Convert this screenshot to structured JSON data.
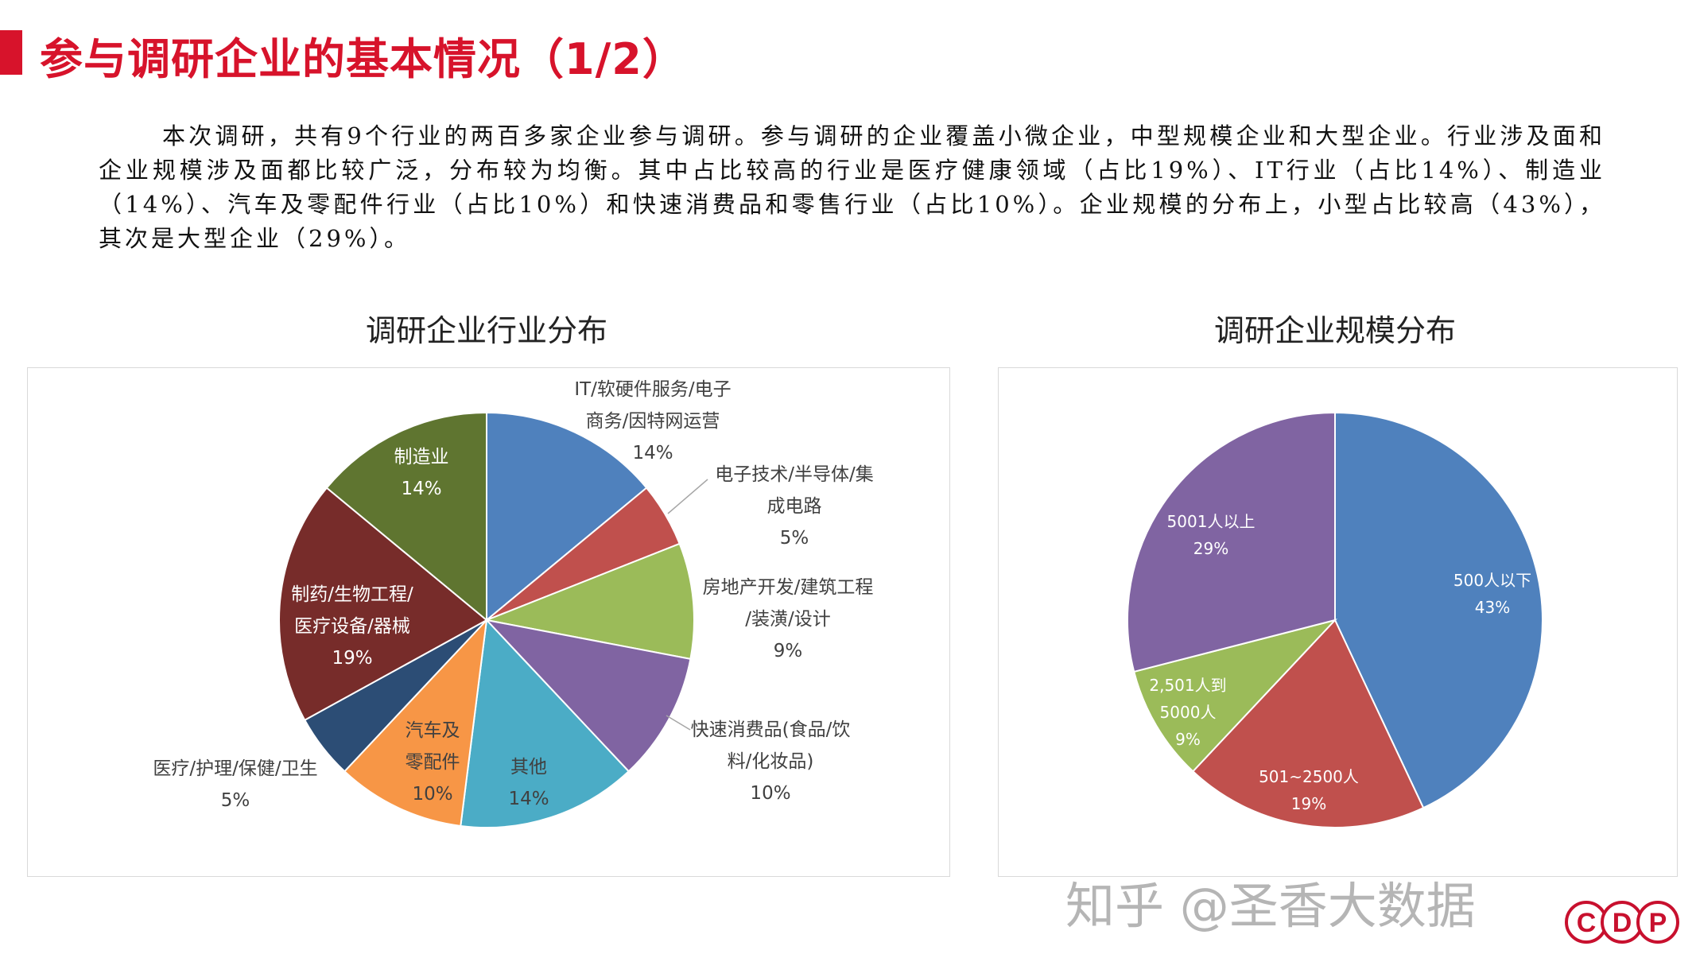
{
  "header": {
    "title": "参与调研企业的基本情况（1/2）",
    "accent_color": "#D7132B"
  },
  "intro": "本次调研，共有9个行业的两百多家企业参与调研。参与调研的企业覆盖小微企业，中型规模企业和大型企业。行业涉及面和企业规模涉及面都比较广泛，分布较为均衡。其中占比较高的行业是医疗健康领域（占比19%）、IT行业（占比14%）、制造业（14%）、汽车及零配件行业（占比10%）和快速消费品和零售行业（占比10%）。企业规模的分布上，小型占比较高（43%），其次是大型企业（29%）。",
  "watermark": "知乎 @圣香大数据",
  "logo_text": "CDP",
  "chart_data": [
    {
      "type": "pie",
      "title": "调研企业行业分布",
      "slices": [
        {
          "label": [
            "IT/软硬件服务/电子",
            "商务/因特网运营"
          ],
          "value": 14,
          "value_label": "14%",
          "color": "#4F81BD"
        },
        {
          "label": [
            "电子技术/半导体/集",
            "成电路"
          ],
          "value": 5,
          "value_label": "5%",
          "color": "#C0504D"
        },
        {
          "label": [
            "房地产开发/建筑工程",
            "/装潢/设计"
          ],
          "value": 9,
          "value_label": "9%",
          "color": "#9BBB59"
        },
        {
          "label": [
            "快速消费品(食品/饮",
            "料/化妆品)"
          ],
          "value": 10,
          "value_label": "10%",
          "color": "#8064A2"
        },
        {
          "label": [
            "其他"
          ],
          "value": 14,
          "value_label": "14%",
          "color": "#4BACC6"
        },
        {
          "label": [
            "汽车及",
            "零配件"
          ],
          "value": 10,
          "value_label": "10%",
          "color": "#F79646"
        },
        {
          "label": [
            "医疗/护理/保健/卫生"
          ],
          "value": 5,
          "value_label": "5%",
          "color": "#2C4D75"
        },
        {
          "label": [
            "制药/生物工程/",
            "医疗设备/器械"
          ],
          "value": 19,
          "value_label": "19%",
          "color": "#772C2A"
        },
        {
          "label": [
            "制造业"
          ],
          "value": 14,
          "value_label": "14%",
          "color": "#5F7530"
        }
      ]
    },
    {
      "type": "pie",
      "title": "调研企业规模分布",
      "slices": [
        {
          "label": [
            "500人以下"
          ],
          "value": 43,
          "value_label": "43%",
          "color": "#4F81BD"
        },
        {
          "label": [
            "501~2500人"
          ],
          "value": 19,
          "value_label": "19%",
          "color": "#C0504D"
        },
        {
          "label": [
            "2,501人到",
            "5000人"
          ],
          "value": 9,
          "value_label": "9%",
          "color": "#9BBB59"
        },
        {
          "label": [
            "5001人以上"
          ],
          "value": 29,
          "value_label": "29%",
          "color": "#8064A2"
        }
      ]
    }
  ]
}
